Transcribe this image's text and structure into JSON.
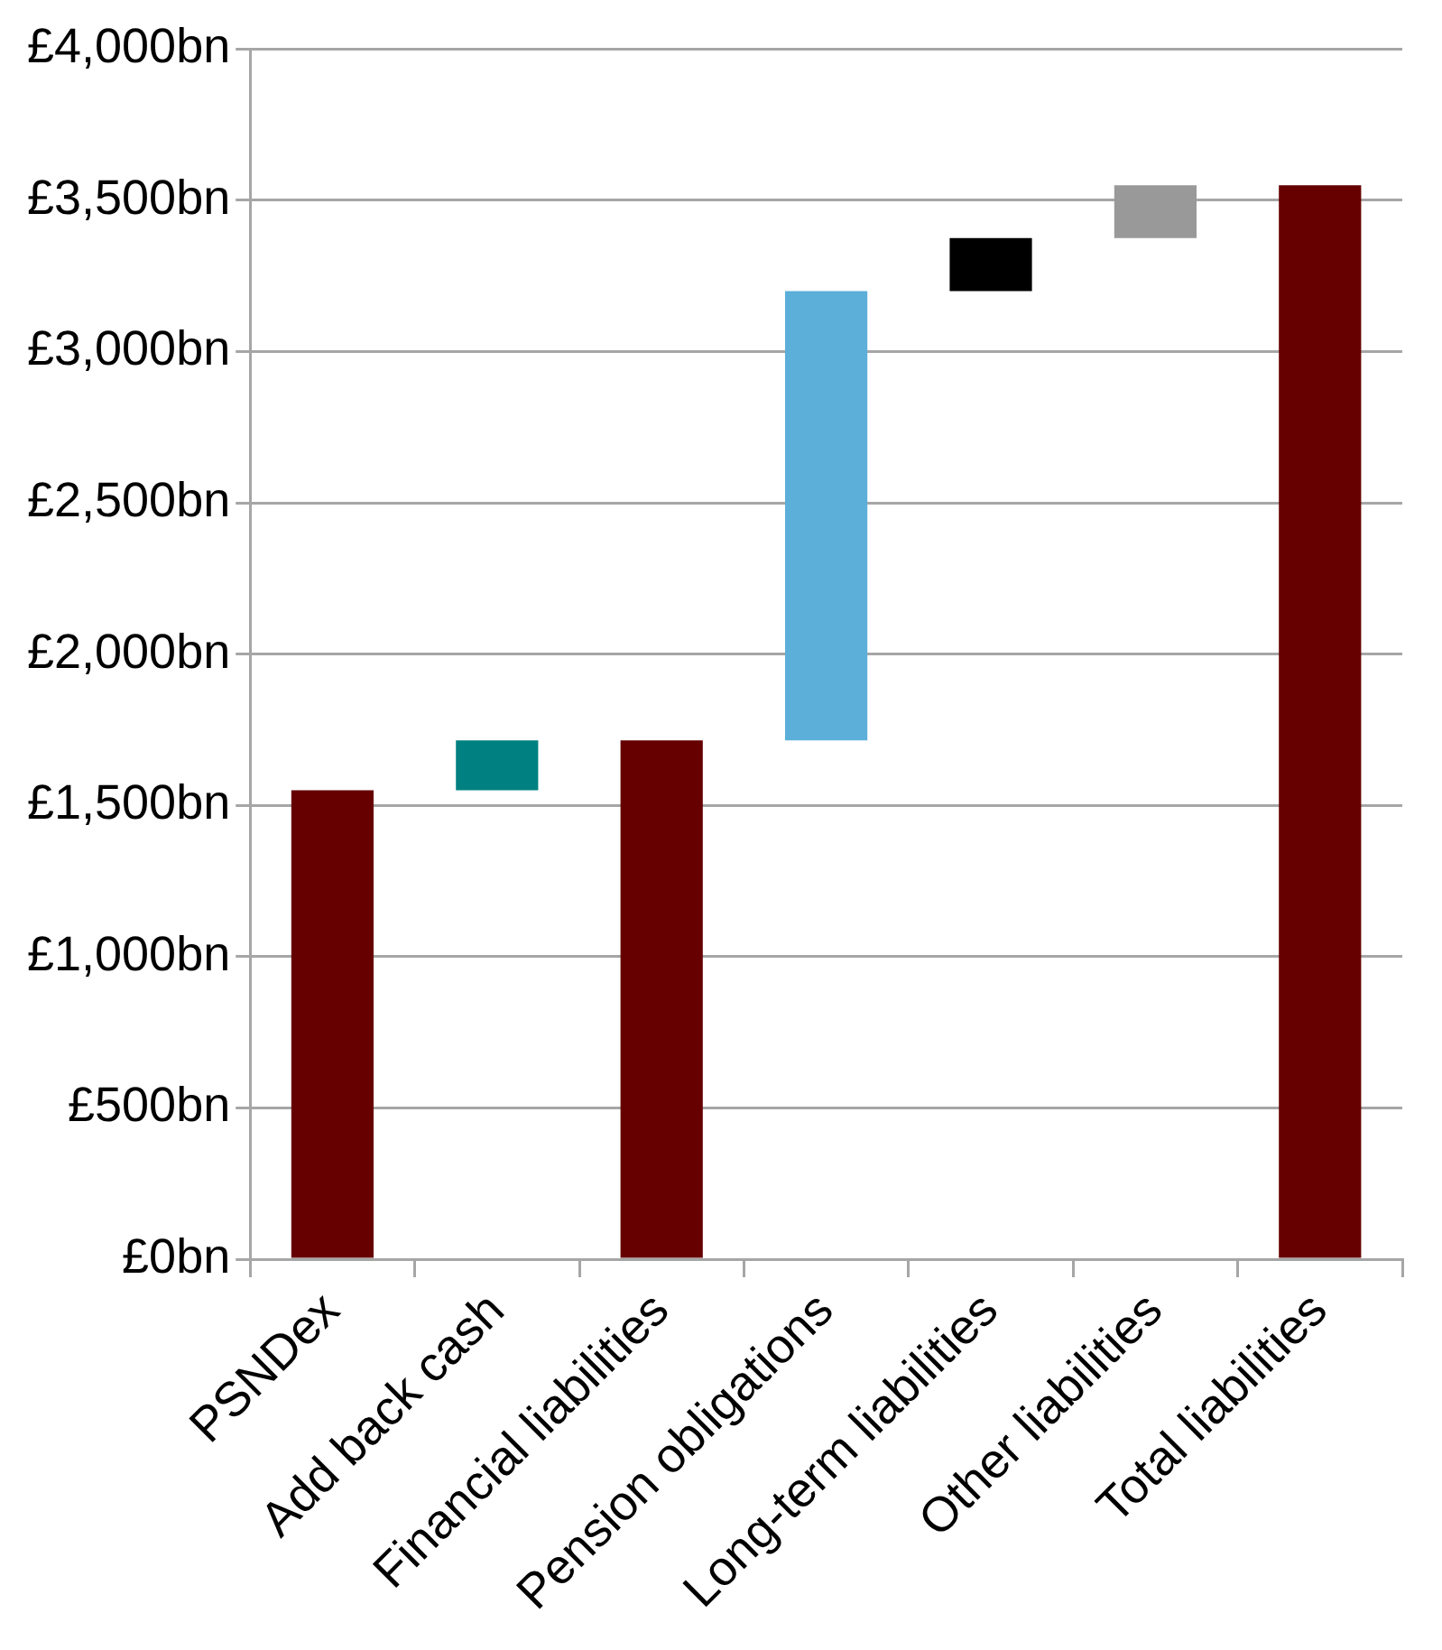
{
  "chart_data": {
    "type": "bar",
    "categories": [
      "PSNDex",
      "Add back cash",
      "Financial liabilities",
      "Pension obligations",
      "Long-term liabilities",
      "Other liabilities",
      "Total liabilities"
    ],
    "values": [
      1550,
      165,
      1715,
      1485,
      175,
      175,
      3550
    ],
    "base": [
      0,
      1550,
      0,
      1715,
      3200,
      3375,
      0
    ],
    "colors": [
      "#660000",
      "#008080",
      "#660000",
      "#5bafd9",
      "#000000",
      "#999999",
      "#660000"
    ],
    "ylim": [
      0,
      4000
    ],
    "yticks": [
      {
        "value": 0,
        "label": "£0bn"
      },
      {
        "value": 500,
        "label": "£500bn"
      },
      {
        "value": 1000,
        "label": "£1,000bn"
      },
      {
        "value": 1500,
        "label": "£1,500bn"
      },
      {
        "value": 2000,
        "label": "£2,000bn"
      },
      {
        "value": 2500,
        "label": "£2,500bn"
      },
      {
        "value": 3000,
        "label": "£3,000bn"
      },
      {
        "value": 3500,
        "label": "£3,500bn"
      },
      {
        "value": 4000,
        "label": "£4,000bn"
      }
    ],
    "grid": "y"
  }
}
